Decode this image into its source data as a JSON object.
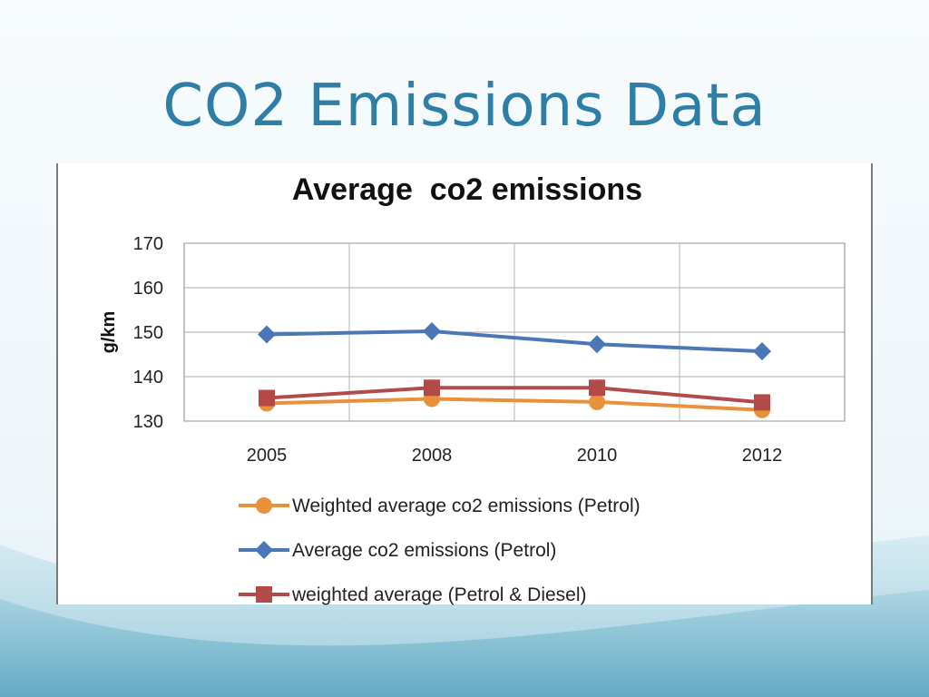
{
  "slide": {
    "title": "CO2 Emissions Data",
    "title_color": "#2e7ea6"
  },
  "chart_data": {
    "type": "line",
    "title": "Average  co2 emissions",
    "xlabel": "",
    "ylabel": "g/km",
    "categories": [
      "2005",
      "2008",
      "2010",
      "2012"
    ],
    "ylim": [
      130,
      170
    ],
    "yticks": [
      130,
      140,
      150,
      160,
      170
    ],
    "grid": true,
    "legend_position": "bottom",
    "series": [
      {
        "name": "Weighted average co2 emissions (Petrol)",
        "values": [
          134,
          135,
          134.3,
          132.5
        ],
        "color": "#e8913a",
        "marker": "circle"
      },
      {
        "name": "Average co2 emissions (Petrol)",
        "values": [
          149.5,
          150.2,
          147.3,
          145.7
        ],
        "color": "#4a77b8",
        "marker": "diamond"
      },
      {
        "name": "weighted average (Petrol & Diesel)",
        "values": [
          135.2,
          137.5,
          137.5,
          134.2
        ],
        "color": "#b24a4a",
        "marker": "square"
      }
    ]
  }
}
